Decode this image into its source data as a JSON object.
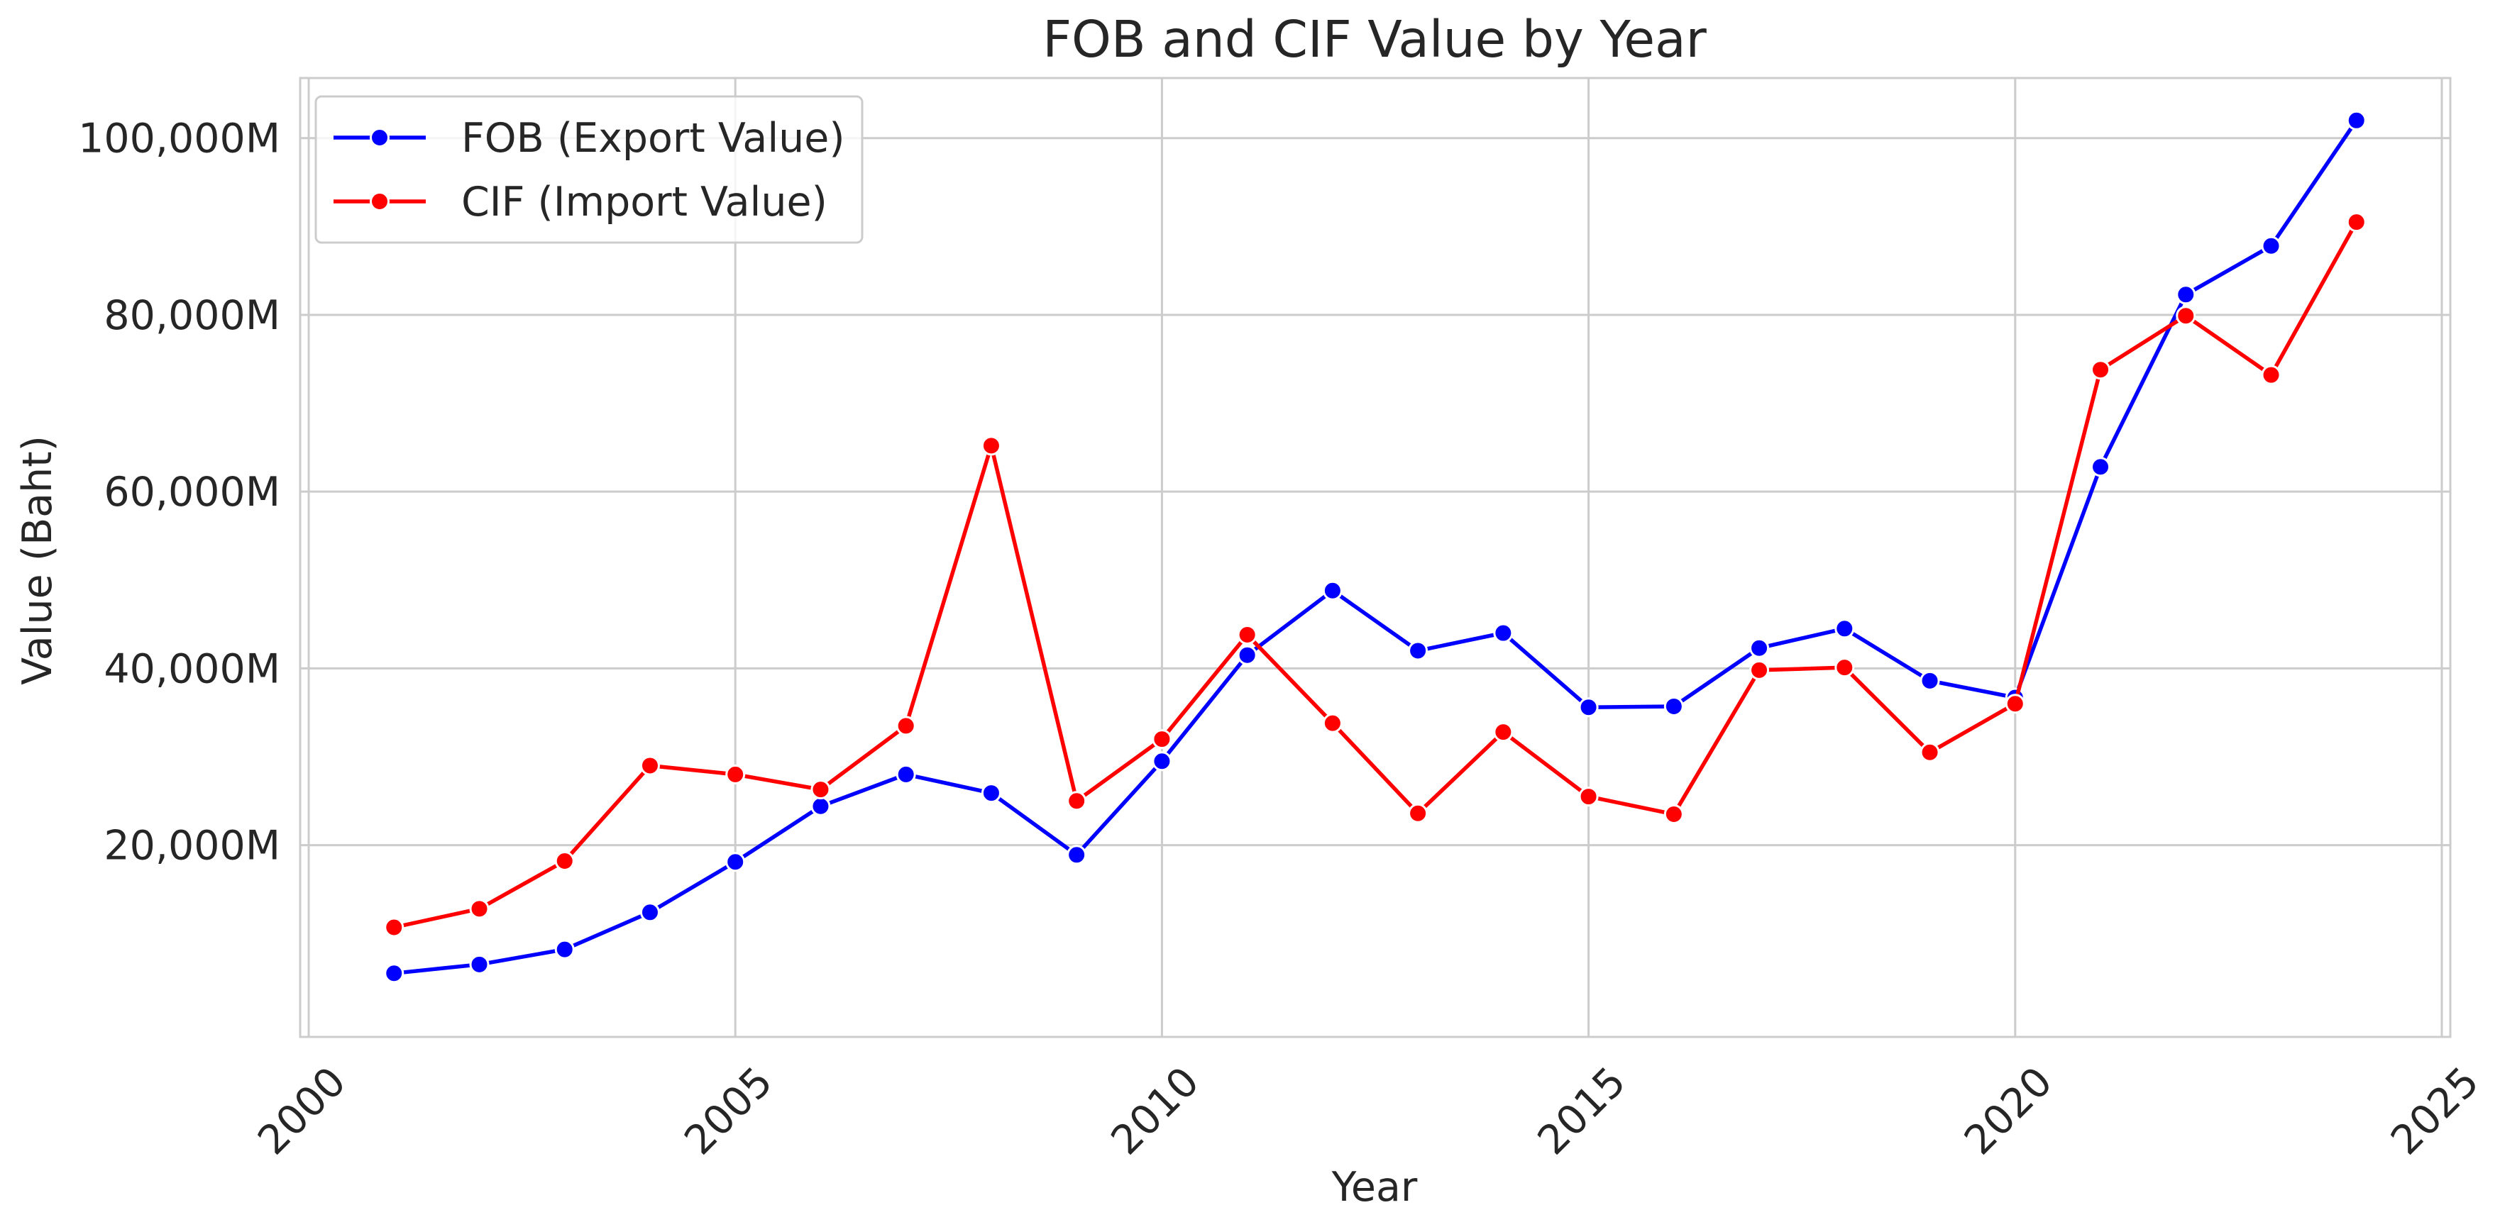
{
  "chart_data": {
    "type": "line",
    "title": "FOB and CIF Value by Year",
    "xlabel": "Year",
    "ylabel": "Value (Baht)",
    "xlim": [
      1999.9,
      2025.1
    ],
    "ylim": [
      -1700,
      106800
    ],
    "x_ticks": [
      2000,
      2005,
      2010,
      2015,
      2020,
      2025
    ],
    "y_ticks": [
      20000,
      40000,
      60000,
      80000,
      100000
    ],
    "y_tick_labels": [
      "20,000M",
      "40,000M",
      "60,000M",
      "80,000M",
      "100,000M"
    ],
    "x_unit_note": "",
    "grid": true,
    "legend_position": "upper-left",
    "x": [
      2001,
      2002,
      2003,
      2004,
      2005,
      2006,
      2007,
      2008,
      2009,
      2010,
      2011,
      2012,
      2013,
      2014,
      2015,
      2016,
      2017,
      2018,
      2019,
      2020,
      2021,
      2022,
      2023,
      2024
    ],
    "series": [
      {
        "name": "FOB (Export Value)",
        "color": "#0000ff",
        "values": [
          5500,
          6500,
          8200,
          12400,
          18100,
          24400,
          28000,
          25900,
          18900,
          29500,
          41500,
          48800,
          42000,
          44000,
          35600,
          35700,
          42300,
          44500,
          38600,
          36700,
          62800,
          82300,
          87800,
          102000
        ]
      },
      {
        "name": "CIF (Import Value)",
        "color": "#ff0000",
        "values": [
          10700,
          12800,
          18200,
          29000,
          28000,
          26300,
          33500,
          65200,
          25000,
          32000,
          43800,
          33800,
          23600,
          32800,
          25500,
          23500,
          39800,
          40100,
          30500,
          36000,
          73800,
          79900,
          73200,
          90500
        ]
      }
    ]
  }
}
